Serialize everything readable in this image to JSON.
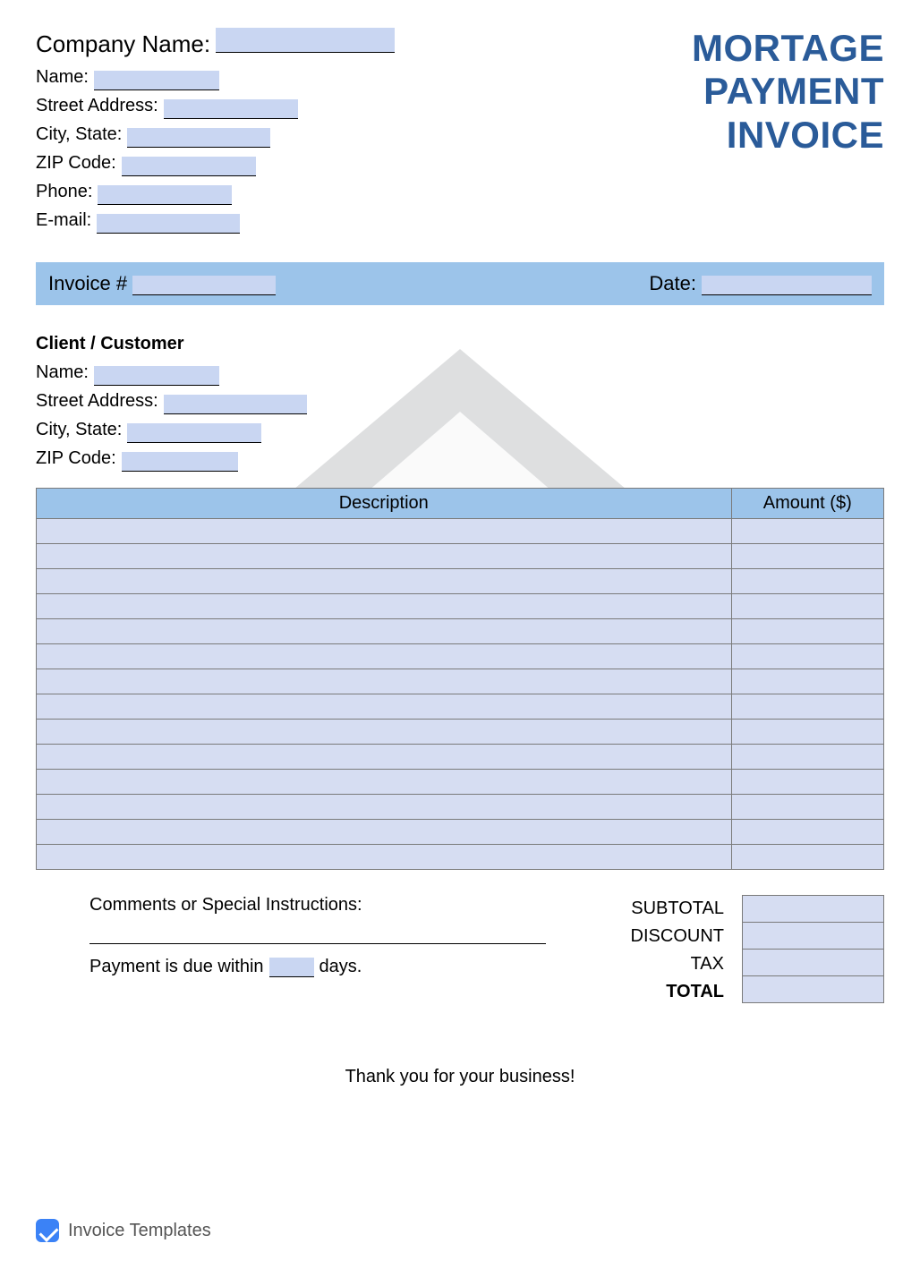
{
  "colors": {
    "title": "#2a5b99",
    "fill_highlight": "#c9d6f2",
    "invoice_bar_bg": "#9cc4ea",
    "table_header_bg": "#9cc4ea",
    "table_row_bg": "#d6ddf2",
    "totals_box_bg": "#d6ddf2",
    "border": "#7a7a7a"
  },
  "title_lines": [
    "MORTAGE",
    "PAYMENT",
    "INVOICE"
  ],
  "company": {
    "company_name_label": "Company Name:",
    "name_label": "Name:",
    "street_label": "Street Address:",
    "city_state_label": "City, State:",
    "zip_label": "ZIP Code:",
    "phone_label": "Phone:",
    "email_label": "E-mail:",
    "company_name": "",
    "name": "",
    "street": "",
    "city_state": "",
    "zip": "",
    "phone": "",
    "email": ""
  },
  "invoice_bar": {
    "invoice_label": "Invoice #",
    "date_label": "Date:",
    "invoice_number": "",
    "date": ""
  },
  "client": {
    "heading": "Client / Customer",
    "name_label": "Name:",
    "street_label": "Street Address:",
    "city_state_label": "City, State:",
    "zip_label": "ZIP Code:",
    "name": "",
    "street": "",
    "city_state": "",
    "zip": ""
  },
  "table": {
    "columns": [
      "Description",
      "Amount ($)"
    ],
    "row_count": 14,
    "rows": [
      [
        "",
        ""
      ],
      [
        "",
        ""
      ],
      [
        "",
        ""
      ],
      [
        "",
        ""
      ],
      [
        "",
        ""
      ],
      [
        "",
        ""
      ],
      [
        "",
        ""
      ],
      [
        "",
        ""
      ],
      [
        "",
        ""
      ],
      [
        "",
        ""
      ],
      [
        "",
        ""
      ],
      [
        "",
        ""
      ],
      [
        "",
        ""
      ],
      [
        "",
        ""
      ]
    ]
  },
  "comments": {
    "label": "Comments or Special Instructions:",
    "text": "",
    "due_prefix": "Payment is due within",
    "due_days": "",
    "due_suffix": "days."
  },
  "totals": {
    "subtotal_label": "SUBTOTAL",
    "discount_label": "DISCOUNT",
    "tax_label": "TAX",
    "total_label": "TOTAL",
    "subtotal": "",
    "discount": "",
    "tax": "",
    "total": ""
  },
  "thanks": "Thank you for your business!",
  "brand": "Invoice Templates",
  "fill_widths": {
    "company_name": 200,
    "name": 140,
    "street": 150,
    "city_state": 160,
    "zip": 150,
    "phone": 150,
    "email": 160,
    "invoice_no": 160,
    "date": 190,
    "client_name": 140,
    "client_street": 160,
    "client_city_state": 150,
    "client_zip": 130,
    "due_days": 50
  }
}
